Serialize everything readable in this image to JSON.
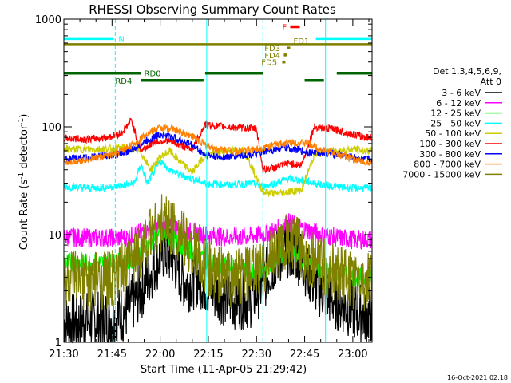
{
  "chart_data": {
    "type": "line",
    "title": "RHESSI Observing Summary Count Rates",
    "xlabel": "Start Time (11-Apr-05 21:29:42)",
    "ylabel_main": "Count Rate (s",
    "ylabel_sup1": "-1",
    "ylabel_mid": " detector",
    "ylabel_sup2": "-1",
    "ylabel_end": ")",
    "y_scale": "log",
    "ylim": [
      1,
      1000
    ],
    "xlim_minutes": [
      0,
      96
    ],
    "x_ticks": [
      {
        "m": 0,
        "label": "21:30"
      },
      {
        "m": 15,
        "label": "21:45"
      },
      {
        "m": 30,
        "label": "22:00"
      },
      {
        "m": 45,
        "label": "22:15"
      },
      {
        "m": 60,
        "label": "22:30"
      },
      {
        "m": 75,
        "label": "22:45"
      },
      {
        "m": 90,
        "label": "23:00"
      }
    ],
    "y_ticks": [
      {
        "v": 1,
        "label": "1"
      },
      {
        "v": 10,
        "label": "10"
      },
      {
        "v": 100,
        "label": "100"
      },
      {
        "v": 1000,
        "label": "1000"
      }
    ],
    "timestamp": "16-Oct-2021 02:18",
    "legend": {
      "placement": "right",
      "title1": "Det 1,3,4,5,6,9,",
      "title2": "Att 0"
    },
    "series": [
      {
        "name": "3 - 6 keV",
        "color": "#000000",
        "points": [
          [
            0,
            1.5
          ],
          [
            8,
            1.6
          ],
          [
            16,
            1.7
          ],
          [
            20,
            2
          ],
          [
            24,
            3
          ],
          [
            28,
            5
          ],
          [
            31,
            7
          ],
          [
            34,
            6
          ],
          [
            38,
            3.5
          ],
          [
            42,
            4
          ],
          [
            46,
            3
          ],
          [
            52,
            2.5
          ],
          [
            58,
            2.5
          ],
          [
            62,
            3.5
          ],
          [
            66,
            6
          ],
          [
            70,
            7.5
          ],
          [
            74,
            6
          ],
          [
            78,
            3.5
          ],
          [
            84,
            2.5
          ],
          [
            90,
            2
          ],
          [
            94,
            1.8
          ]
        ]
      },
      {
        "name": "6 - 12 keV",
        "color": "#ff00ff",
        "points": [
          [
            0,
            9.5
          ],
          [
            8,
            9.3
          ],
          [
            16,
            9.3
          ],
          [
            20,
            9.5
          ],
          [
            24,
            10.5
          ],
          [
            28,
            11.5
          ],
          [
            32,
            12
          ],
          [
            36,
            11.5
          ],
          [
            40,
            10.5
          ],
          [
            44,
            10
          ],
          [
            50,
            9.5
          ],
          [
            56,
            9.5
          ],
          [
            62,
            10
          ],
          [
            66,
            11
          ],
          [
            70,
            13
          ],
          [
            74,
            11.5
          ],
          [
            78,
            10.5
          ],
          [
            84,
            9.5
          ],
          [
            90,
            9
          ],
          [
            94,
            9
          ]
        ]
      },
      {
        "name": "12 - 25 keV",
        "color": "#00ff00",
        "points": [
          [
            0,
            5.5
          ],
          [
            8,
            5.5
          ],
          [
            16,
            5.5
          ],
          [
            20,
            5.5
          ],
          [
            24,
            7
          ],
          [
            28,
            9
          ],
          [
            31,
            10
          ],
          [
            34,
            9
          ],
          [
            38,
            7.5
          ],
          [
            42,
            6.5
          ],
          [
            46,
            5.5
          ],
          [
            52,
            5
          ],
          [
            58,
            4.5
          ],
          [
            62,
            4.5
          ],
          [
            66,
            6
          ],
          [
            70,
            7
          ],
          [
            74,
            6
          ],
          [
            78,
            5
          ],
          [
            84,
            4.5
          ],
          [
            90,
            4
          ],
          [
            94,
            4
          ]
        ]
      },
      {
        "name": "25 - 50 keV",
        "color": "#00ffff",
        "points": [
          [
            0,
            28
          ],
          [
            8,
            27
          ],
          [
            16,
            28
          ],
          [
            22,
            30
          ],
          [
            24,
            45
          ],
          [
            26,
            30
          ],
          [
            30,
            48
          ],
          [
            33,
            40
          ],
          [
            36,
            36
          ],
          [
            40,
            33
          ],
          [
            44,
            30
          ],
          [
            52,
            29
          ],
          [
            58,
            30
          ],
          [
            62,
            28
          ],
          [
            66,
            30
          ],
          [
            70,
            33
          ],
          [
            74,
            32
          ],
          [
            78,
            30
          ],
          [
            84,
            28
          ],
          [
            90,
            27
          ],
          [
            94,
            27
          ]
        ]
      },
      {
        "name": "50 - 100 keV",
        "color": "#cccc00",
        "points": [
          [
            0,
            62
          ],
          [
            8,
            62
          ],
          [
            16,
            63
          ],
          [
            20,
            65
          ],
          [
            24,
            58
          ],
          [
            27,
            40
          ],
          [
            30,
            52
          ],
          [
            33,
            60
          ],
          [
            36,
            48
          ],
          [
            40,
            38
          ],
          [
            44,
            55
          ],
          [
            50,
            60
          ],
          [
            56,
            62
          ],
          [
            62,
            25
          ],
          [
            66,
            24
          ],
          [
            70,
            25
          ],
          [
            74,
            26
          ],
          [
            78,
            55
          ],
          [
            84,
            60
          ],
          [
            90,
            62
          ],
          [
            94,
            60
          ]
        ]
      },
      {
        "name": "100 - 300 keV",
        "color": "#ff0000",
        "points": [
          [
            0,
            78
          ],
          [
            8,
            77
          ],
          [
            14,
            80
          ],
          [
            18,
            88
          ],
          [
            21,
            115
          ],
          [
            24,
            60
          ],
          [
            28,
            72
          ],
          [
            32,
            75
          ],
          [
            36,
            68
          ],
          [
            40,
            62
          ],
          [
            44,
            105
          ],
          [
            50,
            100
          ],
          [
            56,
            98
          ],
          [
            60,
            96
          ],
          [
            62,
            40
          ],
          [
            66,
            42
          ],
          [
            70,
            46
          ],
          [
            74,
            44
          ],
          [
            78,
            100
          ],
          [
            84,
            95
          ],
          [
            90,
            85
          ],
          [
            94,
            80
          ]
        ]
      },
      {
        "name": "300 - 800 keV",
        "color": "#0000ff",
        "points": [
          [
            0,
            50
          ],
          [
            8,
            52
          ],
          [
            16,
            55
          ],
          [
            22,
            62
          ],
          [
            26,
            75
          ],
          [
            30,
            85
          ],
          [
            34,
            80
          ],
          [
            40,
            68
          ],
          [
            44,
            55
          ],
          [
            48,
            52
          ],
          [
            54,
            54
          ],
          [
            60,
            56
          ],
          [
            64,
            60
          ],
          [
            68,
            64
          ],
          [
            72,
            62
          ],
          [
            76,
            58
          ],
          [
            80,
            58
          ],
          [
            86,
            55
          ],
          [
            90,
            52
          ],
          [
            94,
            50
          ]
        ]
      },
      {
        "name": "800 - 7000 keV",
        "color": "#ff8000",
        "points": [
          [
            0,
            47
          ],
          [
            8,
            50
          ],
          [
            16,
            56
          ],
          [
            22,
            70
          ],
          [
            26,
            88
          ],
          [
            30,
            98
          ],
          [
            34,
            95
          ],
          [
            40,
            82
          ],
          [
            44,
            68
          ],
          [
            48,
            62
          ],
          [
            54,
            60
          ],
          [
            60,
            62
          ],
          [
            64,
            66
          ],
          [
            68,
            70
          ],
          [
            72,
            72
          ],
          [
            76,
            70
          ],
          [
            80,
            62
          ],
          [
            86,
            55
          ],
          [
            90,
            50
          ],
          [
            94,
            47
          ]
        ]
      },
      {
        "name": "7000 - 15000 keV",
        "color": "#808000",
        "points": [
          [
            0,
            3.8
          ],
          [
            8,
            3.7
          ],
          [
            16,
            3.8
          ],
          [
            20,
            5
          ],
          [
            24,
            7.5
          ],
          [
            28,
            11.5
          ],
          [
            31,
            13
          ],
          [
            34,
            12
          ],
          [
            38,
            8.5
          ],
          [
            42,
            6
          ],
          [
            46,
            4.5
          ],
          [
            52,
            4
          ],
          [
            58,
            4.2
          ],
          [
            62,
            5
          ],
          [
            66,
            7
          ],
          [
            70,
            8.5
          ],
          [
            74,
            7.5
          ],
          [
            78,
            5.5
          ],
          [
            84,
            4.5
          ],
          [
            90,
            3.8
          ],
          [
            94,
            3.6
          ]
        ]
      }
    ],
    "annotations": [
      {
        "label": "N",
        "color": "#00ffff",
        "y": 660,
        "segments": [
          [
            0,
            15.5
          ],
          [
            78.5,
            96
          ]
        ],
        "label_m": 17
      },
      {
        "label": "F",
        "color": "#ff0000",
        "y": 850,
        "segments": [
          [
            70.5,
            73.5
          ]
        ],
        "label_m": 68
      },
      {
        "label": "FD1",
        "color": "#808000",
        "y": 630,
        "segments": [],
        "label_m": 71.5
      },
      {
        "label": "",
        "color": "#808000",
        "y": 580,
        "segments": [
          [
            0,
            96
          ]
        ],
        "label_m": 0
      },
      {
        "label": "FD3",
        "color": "#808000",
        "y": 540,
        "segments": [
          [
            69.5,
            70.5
          ]
        ],
        "label_m": 62.5
      },
      {
        "label": "FD4",
        "color": "#808000",
        "y": 465,
        "segments": [
          [
            68.5,
            69.5
          ]
        ],
        "label_m": 62.5
      },
      {
        "label": "FD5",
        "color": "#808000",
        "y": 400,
        "segments": [
          [
            68,
            69
          ]
        ],
        "label_m": 61.5
      },
      {
        "label": "RD0",
        "color": "#006400",
        "y": 315,
        "segments": [
          [
            0,
            24
          ],
          [
            44,
            62
          ],
          [
            85,
            96
          ]
        ],
        "label_m": 25
      },
      {
        "label": "RD4",
        "color": "#006400",
        "y": 270,
        "segments": [
          [
            24,
            43.5
          ],
          [
            75,
            81
          ]
        ],
        "label_m": 16
      }
    ],
    "vlines_solid": [
      0,
      44.5,
      81.5,
      96
    ],
    "vlines_dashed": [
      16,
      62,
      96
    ]
  }
}
